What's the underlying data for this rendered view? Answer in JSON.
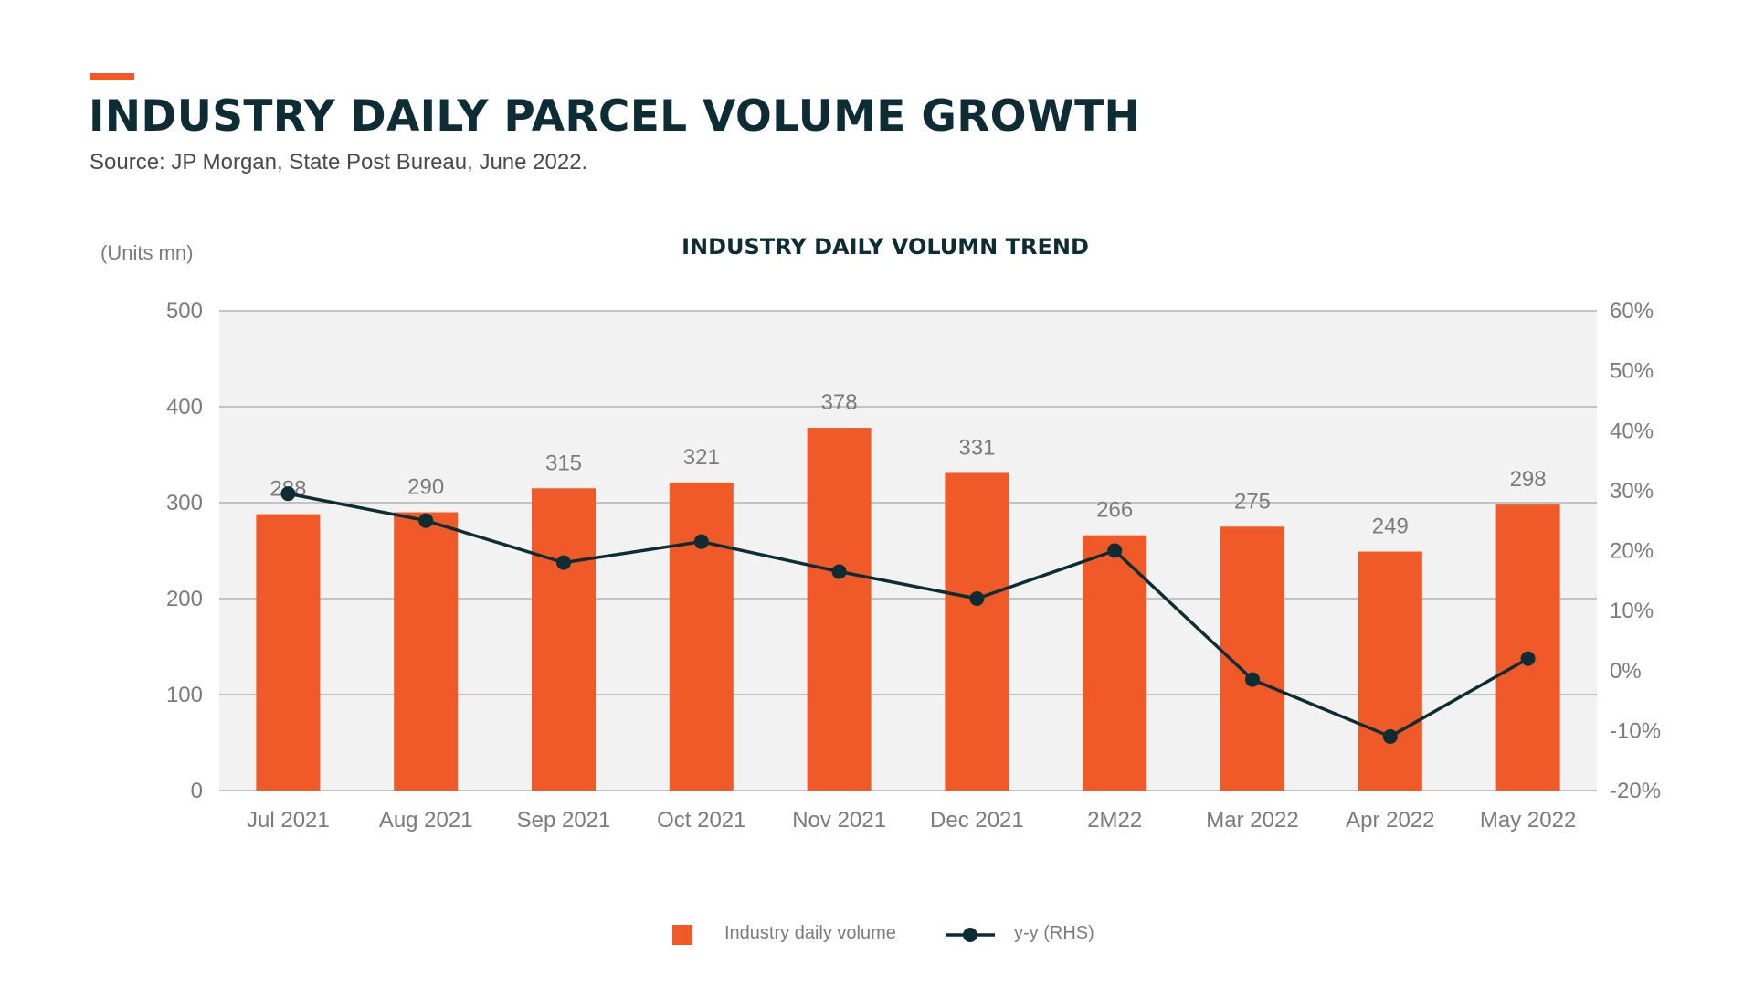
{
  "header": {
    "title": "INDUSTRY DAILY PARCEL VOLUME GROWTH",
    "source": "Source: JP Morgan, State Post Bureau, June 2022."
  },
  "colors": {
    "accent": "#f05a28",
    "bar": "#f05a28",
    "line": "#0d2c33",
    "plot_bg": "#f2f2f2",
    "grid": "#a6a6a6",
    "axis_text": "#7b7b7b",
    "title_text": "#0d2c33"
  },
  "chart_data": {
    "type": "bar",
    "title": "INDUSTRY DAILY VOLUMN TREND",
    "ylabel": "(Units mn)",
    "categories": [
      "Jul 2021",
      "Aug 2021",
      "Sep 2021",
      "Oct 2021",
      "Nov 2021",
      "Dec 2021",
      "2M22",
      "Mar 2022",
      "Apr 2022",
      "May 2022"
    ],
    "series": [
      {
        "name": "Industry daily volume",
        "type": "bar",
        "axis": "left",
        "values": [
          288,
          290,
          315,
          321,
          378,
          331,
          266,
          275,
          249,
          298
        ],
        "data_labels": [
          "288",
          "290",
          "315",
          "321",
          "378",
          "331",
          "266",
          "275",
          "249",
          "298"
        ]
      },
      {
        "name": "y-y (RHS)",
        "type": "line",
        "axis": "right",
        "values": [
          29.5,
          25,
          18,
          21.5,
          16.5,
          12,
          20,
          -1.5,
          -11,
          2
        ]
      }
    ],
    "ylim": [
      0,
      500
    ],
    "yticks": [
      0,
      100,
      200,
      300,
      400,
      500
    ],
    "ytick_labels": [
      "0",
      "100",
      "200",
      "300",
      "400",
      "500"
    ],
    "y2lim": [
      -20,
      60
    ],
    "y2ticks": [
      -20,
      -10,
      0,
      10,
      20,
      30,
      40,
      50,
      60
    ],
    "y2tick_labels": [
      "-20%",
      "-10%",
      "0%",
      "10%",
      "20%",
      "30%",
      "40%",
      "50%",
      "60%"
    ],
    "grid": true,
    "legend_position": "bottom-center"
  }
}
